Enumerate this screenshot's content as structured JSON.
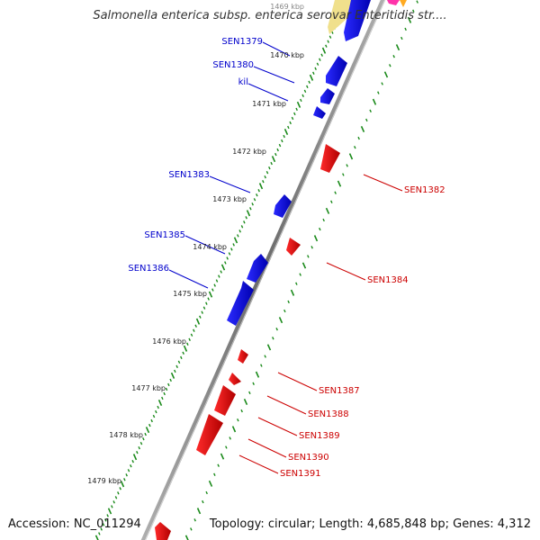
{
  "title": "Salmonella enterica subsp. enterica serovar Enteritidis str....",
  "accession": "Accession: NC_011294",
  "topology": "Topology: circular; Length: 4,685,848 bp; Genes: 4,312",
  "colors": {
    "backbone": "#8a8a8a",
    "forward_gene": "#0000ee",
    "reverse_gene": "#ee0000",
    "tick": "#1a8a1a",
    "label_forward": "#0000cc",
    "label_reverse": "#cc0000",
    "top_feature_yellow": "#f0e08c",
    "top_feature_magenta": "#ff33aa"
  },
  "kbp_labels": [
    "1469 kbp",
    "1470 kbp",
    "1471 kbp",
    "1472 kbp",
    "1473 kbp",
    "1474 kbp",
    "1475 kbp",
    "1476 kbp",
    "1477 kbp",
    "1478 kbp",
    "1479 kbp"
  ],
  "forward_genes": [
    "SEN1379",
    "SEN1380",
    "kil",
    "SEN1383",
    "SEN1385",
    "SEN1386"
  ],
  "reverse_genes": [
    "SEN1382",
    "SEN1384",
    "SEN1387",
    "SEN1388",
    "SEN1389",
    "SEN1390",
    "SEN1391"
  ]
}
